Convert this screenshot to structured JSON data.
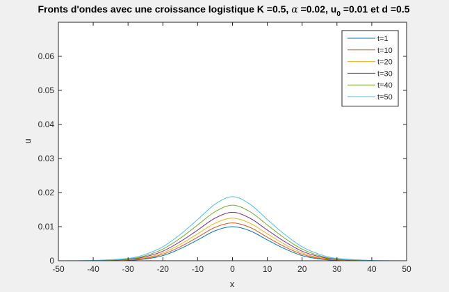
{
  "chart_data": {
    "type": "line",
    "title": {
      "prefix": "Fronts d'ondes avec une croissance logistique K =0.5, ",
      "alpha_symbol": "α",
      "alpha_value": " =0.02, u",
      "subscript": "0",
      "suffix": " =0.01 et d =0.5"
    },
    "xlabel": "x",
    "ylabel": "u",
    "xlim": [
      -50,
      50
    ],
    "ylim": [
      0,
      0.07
    ],
    "x_ticks": [
      -50,
      -40,
      -30,
      -20,
      -10,
      0,
      10,
      20,
      30,
      40,
      50
    ],
    "y_ticks": [
      0,
      0.01,
      0.02,
      0.03,
      0.04,
      0.05,
      0.06
    ],
    "y_tick_labels": [
      "0",
      "0.01",
      "0.02",
      "0.03",
      "0.04",
      "0.05",
      "0.06"
    ],
    "grid": false,
    "legend_position": "top-right",
    "series": [
      {
        "name": "t=1",
        "color": "#0072bd",
        "x": [
          -50,
          -40,
          -30,
          -25,
          -20,
          -15,
          -10,
          -5,
          0,
          5,
          10,
          15,
          20,
          25,
          30,
          40,
          50
        ],
        "values": [
          0,
          0,
          0.0001,
          0.0005,
          0.0015,
          0.0035,
          0.0061,
          0.0088,
          0.01,
          0.0088,
          0.0061,
          0.0035,
          0.0015,
          0.0005,
          0.0001,
          0,
          0
        ]
      },
      {
        "name": "t=10",
        "color": "#d95319",
        "x": [
          -50,
          -40,
          -30,
          -25,
          -20,
          -15,
          -10,
          -5,
          0,
          5,
          10,
          15,
          20,
          25,
          30,
          40,
          50
        ],
        "values": [
          0,
          0,
          0.0002,
          0.0007,
          0.0019,
          0.0041,
          0.0069,
          0.0098,
          0.0111,
          0.0098,
          0.0069,
          0.0041,
          0.0019,
          0.0007,
          0.0002,
          0,
          0
        ]
      },
      {
        "name": "t=20",
        "color": "#edb120",
        "x": [
          -50,
          -40,
          -30,
          -25,
          -20,
          -15,
          -10,
          -5,
          0,
          5,
          10,
          15,
          20,
          25,
          30,
          40,
          50
        ],
        "values": [
          0,
          0,
          0.0003,
          0.0009,
          0.0023,
          0.0048,
          0.0079,
          0.011,
          0.0125,
          0.011,
          0.0079,
          0.0048,
          0.0023,
          0.0009,
          0.0003,
          0,
          0
        ]
      },
      {
        "name": "t=30",
        "color": "#7e2f8e",
        "x": [
          -50,
          -40,
          -30,
          -25,
          -20,
          -15,
          -10,
          -5,
          0,
          5,
          10,
          15,
          20,
          25,
          30,
          40,
          50
        ],
        "values": [
          0,
          0,
          0.0004,
          0.0012,
          0.0028,
          0.0056,
          0.009,
          0.0125,
          0.0142,
          0.0125,
          0.009,
          0.0056,
          0.0028,
          0.0012,
          0.0004,
          0,
          0
        ]
      },
      {
        "name": "t=40",
        "color": "#77ac30",
        "x": [
          -50,
          -40,
          -30,
          -25,
          -20,
          -15,
          -10,
          -5,
          0,
          5,
          10,
          15,
          20,
          25,
          30,
          40,
          50
        ],
        "values": [
          0,
          0,
          0.0005,
          0.0015,
          0.0034,
          0.0066,
          0.0105,
          0.0144,
          0.0163,
          0.0144,
          0.0105,
          0.0066,
          0.0034,
          0.0015,
          0.0005,
          0,
          0
        ]
      },
      {
        "name": "t=50",
        "color": "#4dbeee",
        "x": [
          -50,
          -40,
          -30,
          -25,
          -20,
          -15,
          -10,
          -5,
          0,
          5,
          10,
          15,
          20,
          25,
          30,
          40,
          50
        ],
        "values": [
          0,
          0.0001,
          0.0007,
          0.0019,
          0.0041,
          0.0077,
          0.0121,
          0.0166,
          0.0188,
          0.0166,
          0.0121,
          0.0077,
          0.0041,
          0.0019,
          0.0007,
          0.0001,
          0
        ]
      }
    ]
  }
}
